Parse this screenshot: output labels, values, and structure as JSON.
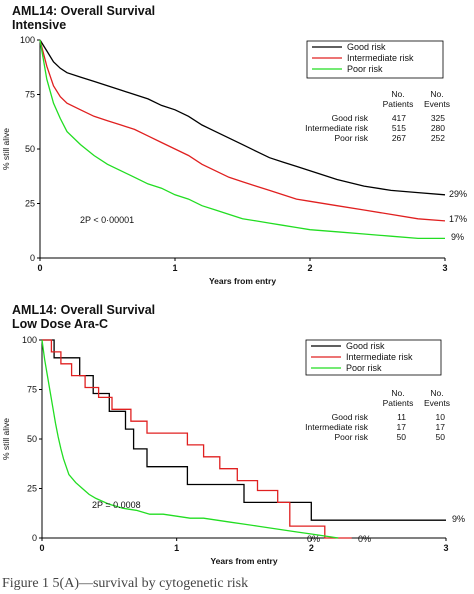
{
  "chart_data": [
    {
      "type": "line",
      "title": "AML14: Overall Survival",
      "subtitle": "Intensive",
      "xlabel": "Years from entry",
      "ylabel": "% still alive",
      "xlim": [
        0,
        3
      ],
      "ylim": [
        0,
        100
      ],
      "xticks": [
        "0",
        "1",
        "2",
        "3"
      ],
      "yticks": [
        "0",
        "25",
        "50",
        "75",
        "100"
      ],
      "grid": false,
      "legend_position": "top-right",
      "series": [
        {
          "name": "Good risk",
          "color": "#000000",
          "end_label": "29%",
          "x": [
            0,
            0.05,
            0.1,
            0.15,
            0.2,
            0.3,
            0.4,
            0.5,
            0.6,
            0.7,
            0.8,
            0.9,
            1.0,
            1.1,
            1.2,
            1.3,
            1.4,
            1.5,
            1.6,
            1.7,
            1.8,
            1.9,
            2.0,
            2.2,
            2.4,
            2.6,
            2.8,
            3.0
          ],
          "y": [
            100,
            95,
            90,
            87,
            85,
            83,
            81,
            79,
            77,
            75,
            73,
            70,
            68,
            65,
            61,
            58,
            55,
            52,
            49,
            46,
            44,
            42,
            40,
            36,
            33,
            31,
            30,
            29
          ]
        },
        {
          "name": "Intermediate risk",
          "color": "#e02020",
          "end_label": "17%",
          "x": [
            0,
            0.05,
            0.1,
            0.15,
            0.2,
            0.3,
            0.4,
            0.5,
            0.6,
            0.7,
            0.8,
            0.9,
            1.0,
            1.1,
            1.2,
            1.3,
            1.4,
            1.5,
            1.6,
            1.7,
            1.8,
            1.9,
            2.0,
            2.2,
            2.4,
            2.6,
            2.8,
            3.0
          ],
          "y": [
            100,
            88,
            79,
            74,
            71,
            68,
            65,
            63,
            61,
            59,
            56,
            53,
            50,
            47,
            43,
            40,
            37,
            35,
            33,
            31,
            29,
            27,
            26,
            24,
            22,
            20,
            18,
            17
          ]
        },
        {
          "name": "Poor risk",
          "color": "#22dd22",
          "end_label": "9%",
          "x": [
            0,
            0.05,
            0.1,
            0.15,
            0.2,
            0.3,
            0.4,
            0.5,
            0.6,
            0.7,
            0.8,
            0.9,
            1.0,
            1.1,
            1.2,
            1.3,
            1.4,
            1.5,
            1.6,
            1.7,
            1.8,
            1.9,
            2.0,
            2.2,
            2.4,
            2.6,
            2.8,
            3.0
          ],
          "y": [
            100,
            82,
            71,
            64,
            58,
            52,
            47,
            43,
            40,
            37,
            34,
            32,
            29,
            27,
            24,
            22,
            20,
            18,
            17,
            16,
            15,
            14,
            13,
            12,
            11,
            10,
            9,
            9
          ]
        }
      ],
      "table": {
        "headers": [
          "No. Patients",
          "No. Events"
        ],
        "rows": [
          {
            "label": "Good risk",
            "patients": "417",
            "events": "325"
          },
          {
            "label": "Intermediate risk",
            "patients": "515",
            "events": "280"
          },
          {
            "label": "Poor risk",
            "patients": "267",
            "events": "252"
          }
        ]
      },
      "annotation": "2P < 0·00001"
    },
    {
      "type": "line",
      "title": "AML14: Overall Survival",
      "subtitle": "Low Dose Ara-C",
      "xlabel": "Years from entry",
      "ylabel": "% still alive",
      "xlim": [
        0,
        3
      ],
      "ylim": [
        0,
        100
      ],
      "xticks": [
        "0",
        "1",
        "2",
        "3"
      ],
      "yticks": [
        "0",
        "25",
        "50",
        "75",
        "100"
      ],
      "grid": false,
      "legend_position": "top-right",
      "series": [
        {
          "name": "Good risk",
          "color": "#000000",
          "end_label": "9%",
          "x": [
            0,
            0.09,
            0.09,
            0.28,
            0.28,
            0.38,
            0.38,
            0.5,
            0.5,
            0.62,
            0.62,
            0.68,
            0.68,
            0.78,
            0.78,
            1.08,
            1.08,
            1.5,
            1.5,
            2.0,
            2.0,
            3.0
          ],
          "y": [
            100,
            100,
            91,
            91,
            82,
            82,
            73,
            73,
            64,
            64,
            55,
            55,
            45,
            45,
            36,
            36,
            27,
            27,
            18,
            18,
            9,
            9
          ]
        },
        {
          "name": "Intermediate risk",
          "color": "#e02020",
          "end_label": "0%",
          "x": [
            0,
            0.07,
            0.07,
            0.14,
            0.14,
            0.22,
            0.22,
            0.32,
            0.32,
            0.42,
            0.42,
            0.52,
            0.52,
            0.66,
            0.66,
            0.78,
            0.78,
            1.08,
            1.08,
            1.2,
            1.2,
            1.32,
            1.32,
            1.45,
            1.45,
            1.6,
            1.6,
            1.75,
            1.75,
            1.84,
            1.84,
            2.1,
            2.1,
            2.3
          ],
          "y": [
            100,
            100,
            94,
            94,
            88,
            88,
            82,
            82,
            76,
            76,
            71,
            71,
            65,
            65,
            59,
            59,
            53,
            53,
            47,
            47,
            41,
            41,
            35,
            35,
            29,
            29,
            24,
            24,
            18,
            18,
            6,
            6,
            0,
            0
          ]
        },
        {
          "name": "Poor risk",
          "color": "#22dd22",
          "end_label": "0%",
          "x": [
            0,
            0.02,
            0.04,
            0.06,
            0.08,
            0.1,
            0.12,
            0.14,
            0.16,
            0.18,
            0.2,
            0.25,
            0.3,
            0.35,
            0.4,
            0.5,
            0.6,
            0.7,
            0.8,
            0.9,
            1.0,
            1.1,
            1.2,
            1.3,
            1.4,
            1.5,
            1.6,
            1.7,
            1.8,
            1.9,
            2.0,
            2.1,
            2.2
          ],
          "y": [
            100,
            90,
            82,
            74,
            66,
            58,
            51,
            45,
            40,
            36,
            32,
            28,
            25,
            22,
            20,
            17,
            15,
            14,
            12,
            12,
            11,
            10,
            10,
            9,
            8,
            7,
            6,
            5,
            4,
            3,
            2,
            1,
            0
          ]
        }
      ],
      "table": {
        "headers": [
          "No. Patients",
          "No. Events"
        ],
        "rows": [
          {
            "label": "Good risk",
            "patients": "11",
            "events": "10"
          },
          {
            "label": "Intermediate risk",
            "patients": "17",
            "events": "17"
          },
          {
            "label": "Poor risk",
            "patients": "50",
            "events": "50"
          }
        ]
      },
      "annotation": "2P = 0.0008"
    }
  ],
  "caption": "Figure 1 5(A)—survival by cytogenetic risk"
}
